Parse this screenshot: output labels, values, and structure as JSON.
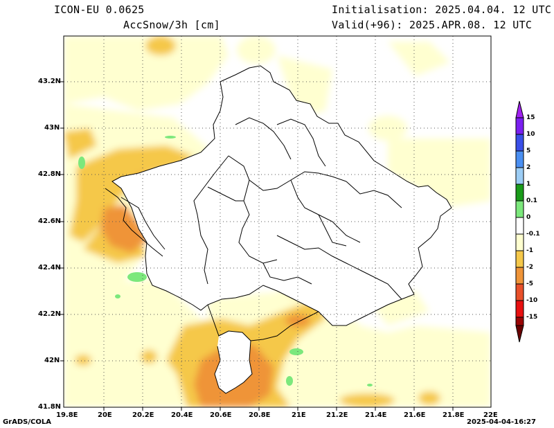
{
  "header": {
    "model": "ICON-EU 0.0625",
    "variable": "AccSnow/3h [cm]",
    "init": "Initialisation: 2025.04.04. 12 UTC",
    "valid": "Valid(+96): 2025.APR.08. 12 UTC"
  },
  "axes": {
    "x_ticks": [
      "19.8E",
      "20E",
      "20.2E",
      "20.4E",
      "20.6E",
      "20.8E",
      "21E",
      "21.2E",
      "21.4E",
      "21.6E",
      "21.8E",
      "22E"
    ],
    "y_ticks": [
      "43.2N",
      "43N",
      "42.8N",
      "42.6N",
      "42.4N",
      "42.2N",
      "42N",
      "41.8N"
    ]
  },
  "colorbar": {
    "labels": [
      "15",
      "10",
      "5",
      "2",
      "1",
      "0.1",
      "0",
      "-0.1",
      "-1",
      "-2",
      "-5",
      "-10",
      "-15"
    ],
    "colors": [
      "#7a1ff0",
      "#3a4fe8",
      "#4a8ff2",
      "#9ccdf5",
      "#1a9b1a",
      "#7ce87c",
      "#ffffff",
      "#ffffd0",
      "#f5c84a",
      "#ef9438",
      "#e8502a",
      "#e81010",
      "#9a0505"
    ]
  },
  "footer": {
    "left": "GrADS/COLA",
    "right": "2025-04-04-16:27"
  }
}
